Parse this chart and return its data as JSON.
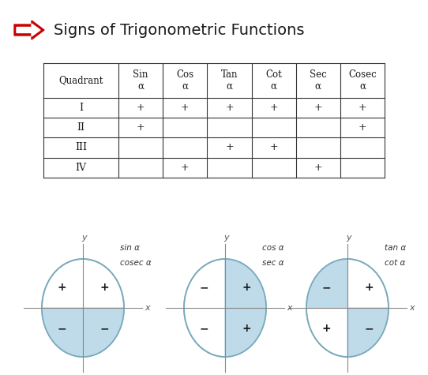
{
  "title": "Signs of Trigonometric Functions",
  "bg_color": "#ffffff",
  "title_fontsize": 14,
  "title_color": "#1a1a1a",
  "arrow_color": "#cc0000",
  "table_headers": [
    "Quadrant",
    "Sin\nα",
    "Cos\nα",
    "Tan\nα",
    "Cot\nα",
    "Sec\nα",
    "Cosec\nα"
  ],
  "table_rows": [
    [
      "I",
      "+",
      "+",
      "+",
      "+",
      "+",
      "+"
    ],
    [
      "II",
      "+",
      "",
      "",
      "",
      "",
      "+"
    ],
    [
      "III",
      "",
      "",
      "+",
      "+",
      "",
      ""
    ],
    [
      "IV",
      "",
      "+",
      "",
      "",
      "+",
      ""
    ]
  ],
  "circle_fill": "#b8d8e8",
  "circle_edge": "#7aaabb",
  "diagram_configs": [
    {
      "shaded": [
        0,
        1
      ],
      "signs": [
        "+",
        "+",
        "−",
        "−"
      ],
      "label1": "sin α",
      "label2": "cosec α"
    },
    {
      "shaded": [
        1,
        3
      ],
      "signs": [
        "−",
        "+",
        "−",
        "+"
      ],
      "label1": "cos α",
      "label2": "sec α"
    },
    {
      "shaded": [
        1,
        2
      ],
      "signs": [
        "−",
        "+",
        "+",
        "−"
      ],
      "label1": "tan α",
      "label2": "cot α"
    }
  ]
}
